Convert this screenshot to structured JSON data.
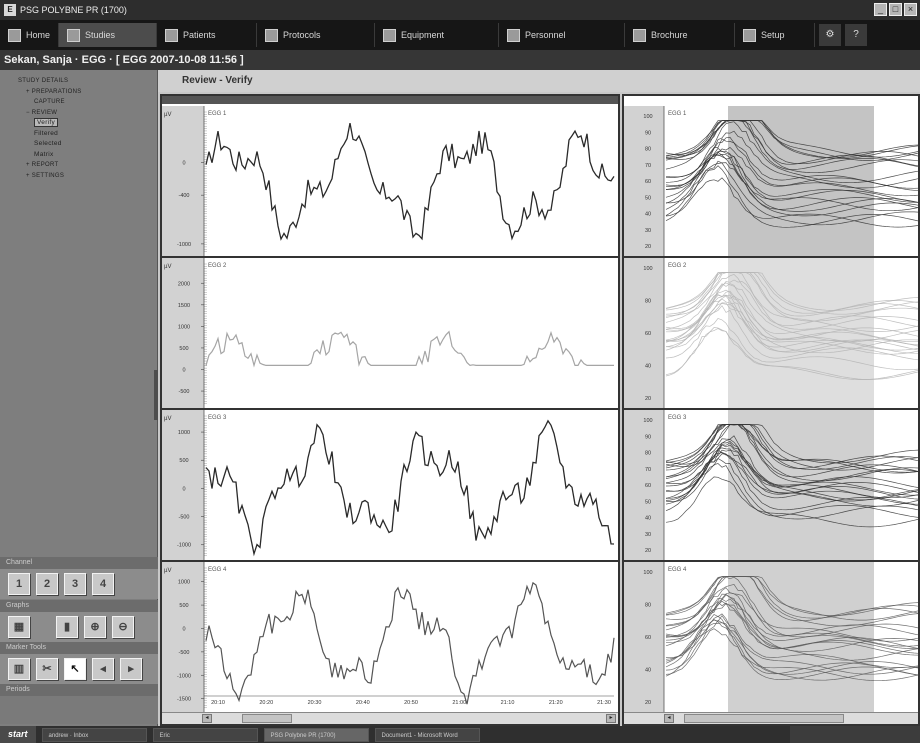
{
  "window": {
    "title": "PSG POLYBNE PR (1700)",
    "icon": "app-icon"
  },
  "menu": [
    {
      "label": "Home",
      "icon": "home-icon"
    },
    {
      "label": "Studies",
      "icon": "studies-icon",
      "active": true
    },
    {
      "label": "Patients",
      "icon": "patients-icon"
    },
    {
      "label": "Protocols",
      "icon": "protocols-icon"
    },
    {
      "label": "Equipment",
      "icon": "equipment-icon"
    },
    {
      "label": "Personnel",
      "icon": "personnel-icon"
    },
    {
      "label": "Brochure",
      "icon": "brochure-icon"
    },
    {
      "label": "Setup",
      "icon": "setup-icon"
    }
  ],
  "patient": {
    "header": "Sekan, Sanja · EGG · [ EGG 2007-10-08 11:56 ]"
  },
  "sidebar": {
    "tree": [
      {
        "label": "STUDY DETAILS",
        "level": 0,
        "prefix": ""
      },
      {
        "label": "PREPARATIONS",
        "level": 1,
        "prefix": "+"
      },
      {
        "label": "CAPTURE",
        "level": 1,
        "prefix": ""
      },
      {
        "label": "REVIEW",
        "level": 1,
        "prefix": "−"
      },
      {
        "label": "Verify",
        "level": 2,
        "prefix": "",
        "selected": true
      },
      {
        "label": "Filtered",
        "level": 2,
        "prefix": ""
      },
      {
        "label": "Selected",
        "level": 2,
        "prefix": ""
      },
      {
        "label": "Matrix",
        "level": 2,
        "prefix": ""
      },
      {
        "label": "REPORT",
        "level": 1,
        "prefix": "+"
      },
      {
        "label": "SETTINGS",
        "level": 1,
        "prefix": "+"
      }
    ],
    "channel_label": "Channel",
    "channel_buttons": [
      "1",
      "2",
      "3",
      "4"
    ],
    "graphs_label": "Graphs",
    "marker_tools_label": "Marker Tools",
    "periods_label": "Periods"
  },
  "content": {
    "title": "Review - Verify"
  },
  "left_channels": [
    {
      "name": "EGG 1",
      "unit": "µV",
      "ticks": [
        {
          "v": 0,
          "label": "0"
        },
        {
          "v": -400,
          "label": "-400"
        },
        {
          "v": -1000,
          "label": "-1000"
        }
      ],
      "ylim": [
        -1100,
        600
      ],
      "color": "#2a2a2a",
      "width": 1.3
    },
    {
      "name": "EGG 2",
      "unit": "µV",
      "ticks": [
        {
          "v": 2000,
          "label": "2000"
        },
        {
          "v": 1500,
          "label": "1500"
        },
        {
          "v": 1000,
          "label": "1000"
        },
        {
          "v": 500,
          "label": "500"
        },
        {
          "v": 0,
          "label": "0"
        },
        {
          "v": -500,
          "label": "-500"
        }
      ],
      "ylim": [
        -800,
        2400
      ],
      "color": "#a5a5a5",
      "width": 1.2
    },
    {
      "name": "EGG 3",
      "unit": "µV",
      "ticks": [
        {
          "v": 1000,
          "label": "1000"
        },
        {
          "v": 500,
          "label": "500"
        },
        {
          "v": 0,
          "label": "0"
        },
        {
          "v": -500,
          "label": "-500"
        },
        {
          "v": -1000,
          "label": "-1000"
        }
      ],
      "ylim": [
        -1200,
        1250
      ],
      "color": "#2a2a2a",
      "width": 1.3
    },
    {
      "name": "EGG 4",
      "unit": "µV",
      "ticks": [
        {
          "v": 1000,
          "label": "1000"
        },
        {
          "v": 500,
          "label": "500"
        },
        {
          "v": 0,
          "label": "0"
        },
        {
          "v": -500,
          "label": "-500"
        },
        {
          "v": -1000,
          "label": "-1000"
        },
        {
          "v": -1500,
          "label": "-1500"
        }
      ],
      "ylim": [
        -1700,
        1250
      ],
      "color": "#555555",
      "width": 1.2
    }
  ],
  "time_ticks": [
    "20:10",
    "20:20",
    "20:30",
    "20:40",
    "20:50",
    "21:00",
    "21:10",
    "21:20",
    "21:30"
  ],
  "right_channels": [
    {
      "name": "EGG 1",
      "ticks": [
        "100",
        "90",
        "80",
        "70",
        "60",
        "50",
        "40",
        "30",
        "20"
      ],
      "color": "#333333",
      "shade": "#c4c4c4"
    },
    {
      "name": "EGG 2",
      "ticks": [
        "100",
        "80",
        "60",
        "40",
        "20"
      ],
      "color": "#b4b4b4",
      "shade": "#dedede"
    },
    {
      "name": "EGG 3",
      "ticks": [
        "100",
        "90",
        "80",
        "70",
        "60",
        "50",
        "40",
        "30",
        "20"
      ],
      "color": "#333333",
      "shade": "#d0d0d0"
    },
    {
      "name": "EGG 4",
      "ticks": [
        "100",
        "80",
        "60",
        "40",
        "20"
      ],
      "color": "#5a5a5a",
      "shade": "#d0d0d0"
    }
  ],
  "taskbar": {
    "start": "start",
    "tasks": [
      "andrew · Inbox",
      "Eric",
      "PSG Polybne PR (1700)",
      "Document1 - Microsoft Word"
    ]
  }
}
